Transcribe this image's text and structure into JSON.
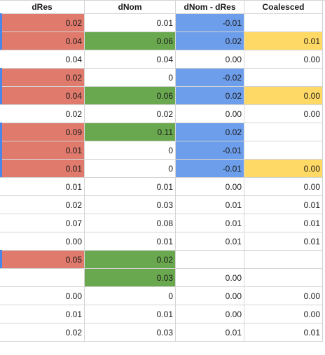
{
  "headers": [
    "dRes",
    "dNom",
    "dNom -  dRes",
    "Coalesced"
  ],
  "rows": [
    [
      "0.02",
      "0.01",
      "-0.01",
      ""
    ],
    [
      "0.04",
      "0.06",
      "0.02",
      "0.01"
    ],
    [
      "0.04",
      "0.04",
      "0.00",
      "0.00"
    ],
    [
      "0.02",
      "0",
      "-0.02",
      ""
    ],
    [
      "0.04",
      "0.06",
      "0.02",
      "0.00"
    ],
    [
      "0.02",
      "0.02",
      "0.00",
      "0.00"
    ],
    [
      "0.09",
      "0.11",
      "0.02",
      ""
    ],
    [
      "0.01",
      "0",
      "-0.01",
      ""
    ],
    [
      "0.01",
      "0",
      "-0.01",
      "0.00"
    ],
    [
      "0.01",
      "0.01",
      "0.00",
      "0.00"
    ],
    [
      "0.02",
      "0.03",
      "0.01",
      "0.01"
    ],
    [
      "0.07",
      "0.08",
      "0.01",
      "0.01"
    ],
    [
      "0.00",
      "0.01",
      "0.01",
      "0.01"
    ],
    [
      "0.05",
      "0.02",
      "",
      ""
    ],
    [
      "",
      "0.03",
      "0.00",
      ""
    ],
    [
      "0.00",
      "0",
      "0.00",
      "0.00"
    ],
    [
      "0.01",
      "0.01",
      "0.00",
      "0.00"
    ],
    [
      "0.02",
      "0.03",
      "0.01",
      "0.01"
    ]
  ],
  "fills": [
    [
      "red",
      "",
      "blue",
      ""
    ],
    [
      "red",
      "green",
      "blue",
      "yellow"
    ],
    [
      "",
      "",
      "",
      ""
    ],
    [
      "red",
      "",
      "blue",
      ""
    ],
    [
      "red",
      "green",
      "blue",
      "yellow"
    ],
    [
      "",
      "",
      "",
      ""
    ],
    [
      "red",
      "green",
      "blue",
      ""
    ],
    [
      "red",
      "",
      "blue",
      ""
    ],
    [
      "red",
      "",
      "blue",
      "yellow"
    ],
    [
      "",
      "",
      "",
      ""
    ],
    [
      "",
      "",
      "",
      ""
    ],
    [
      "",
      "",
      "",
      ""
    ],
    [
      "",
      "",
      "",
      ""
    ],
    [
      "red",
      "green",
      "",
      ""
    ],
    [
      "",
      "green",
      "",
      ""
    ],
    [
      "",
      "",
      "",
      ""
    ],
    [
      "",
      "",
      "",
      ""
    ],
    [
      "",
      "",
      "",
      ""
    ]
  ],
  "colors": {
    "red": "#e07a6c",
    "green": "#6aa84f",
    "blue": "#6d9eeb",
    "yellow": "#ffd966",
    "gridline": "#d4d4d4",
    "left_edge_marker": "#4a86e8"
  }
}
